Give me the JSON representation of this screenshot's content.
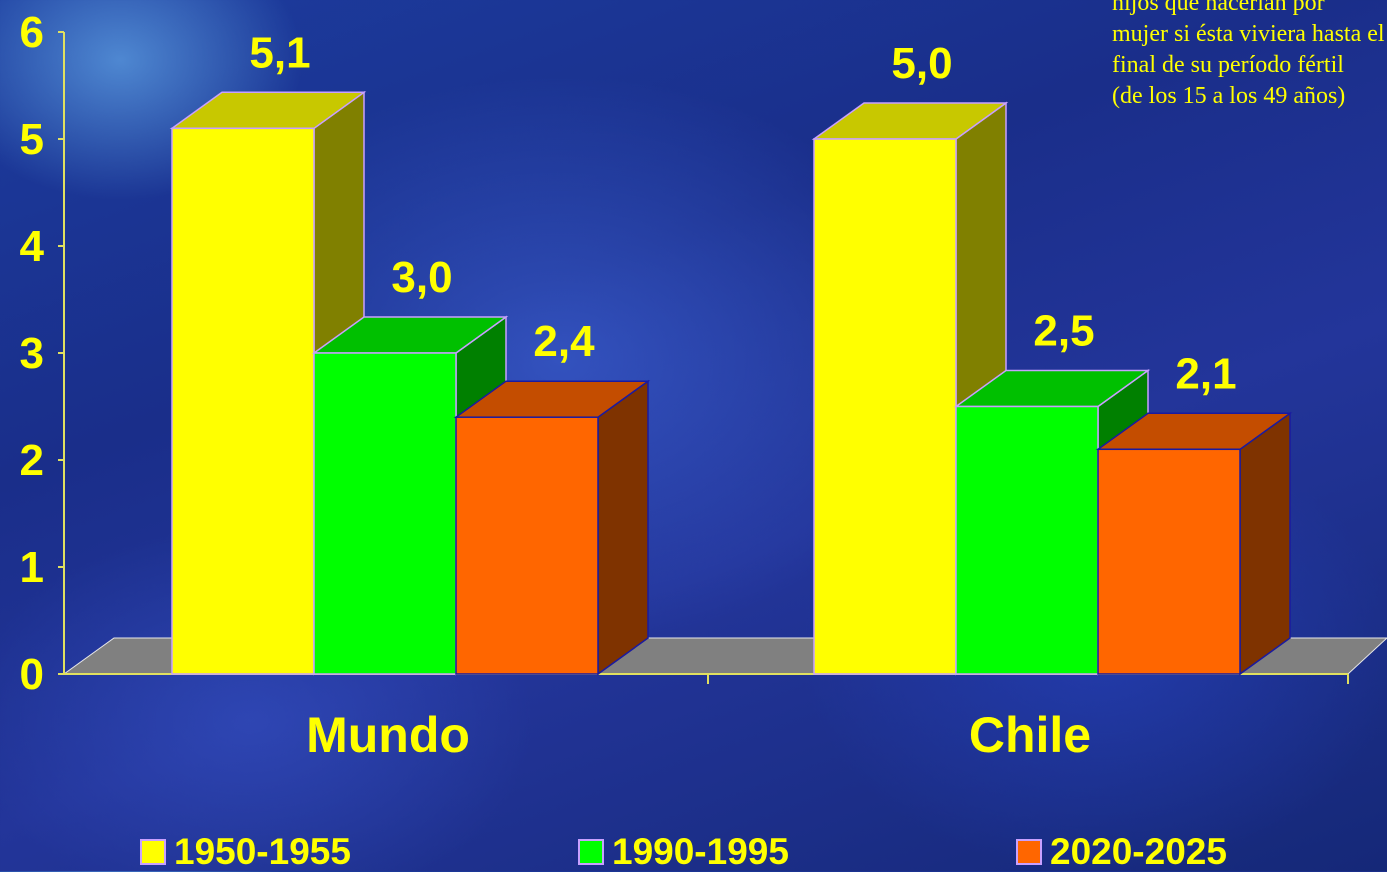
{
  "note_lines": [
    "hijos que nacerían por",
    "mujer si ésta viviera hasta el",
    "final de su período fértil",
    "(de los 15 a los 49 años)"
  ],
  "chart_data": {
    "type": "bar",
    "subtype": "3d-clustered",
    "categories": [
      "Mundo",
      "Chile"
    ],
    "series": [
      {
        "name": "1950-1955",
        "values": [
          5.1,
          5.0
        ],
        "labels": [
          "5,1",
          "5,0"
        ],
        "color": "#ffff00"
      },
      {
        "name": "1990-1995",
        "values": [
          3.0,
          2.5
        ],
        "labels": [
          "3,0",
          "2,5"
        ],
        "color": "#00ff00"
      },
      {
        "name": "2020-2025",
        "values": [
          2.4,
          2.1
        ],
        "labels": [
          "2,4",
          "2,1"
        ],
        "color": "#ff6600"
      }
    ],
    "y_ticks": [
      "0",
      "1",
      "2",
      "3",
      "4",
      "5",
      "6"
    ],
    "ylim": [
      0,
      6
    ],
    "legend_position": "bottom",
    "text_color": "#ffff00",
    "floor_color": "#808080"
  }
}
